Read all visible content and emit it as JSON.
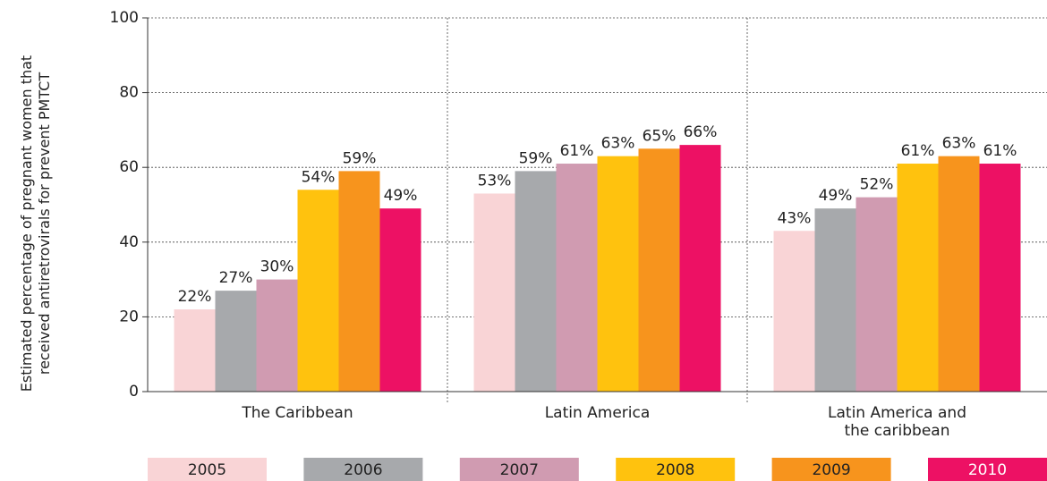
{
  "chart_data": {
    "type": "bar",
    "ylabel": "Estimated percentage of pregnant women that\nreceived antiretrovirals for prevent PMTCT",
    "categories": [
      "The Caribbean",
      "Latin America",
      "Latin America and\nthe caribbean"
    ],
    "series": [
      {
        "name": "2005",
        "color": "#f9d4d6",
        "values": [
          22,
          53,
          43
        ],
        "value_labels": [
          "22%",
          "53%",
          "43%"
        ]
      },
      {
        "name": "2006",
        "color": "#a7a9ac",
        "values": [
          27,
          59,
          49
        ],
        "value_labels": [
          "27%",
          "59%",
          "49%"
        ]
      },
      {
        "name": "2007",
        "color": "#d09bb1",
        "values": [
          30,
          61,
          52
        ],
        "value_labels": [
          "30%",
          "61%",
          "52%"
        ]
      },
      {
        "name": "2008",
        "color": "#ffc20e",
        "values": [
          54,
          63,
          61
        ],
        "value_labels": [
          "54%",
          "63%",
          "61%"
        ]
      },
      {
        "name": "2009",
        "color": "#f7941d",
        "values": [
          59,
          65,
          63
        ],
        "value_labels": [
          "59%",
          "65%",
          "63%"
        ]
      },
      {
        "name": "2010",
        "color": "#ed1164",
        "values": [
          49,
          66,
          61
        ],
        "value_labels": [
          "49%",
          "66%",
          "61%"
        ]
      }
    ],
    "ylim": [
      0,
      100
    ],
    "yticks": [
      0,
      20,
      40,
      60,
      80,
      100
    ],
    "grid": true
  }
}
